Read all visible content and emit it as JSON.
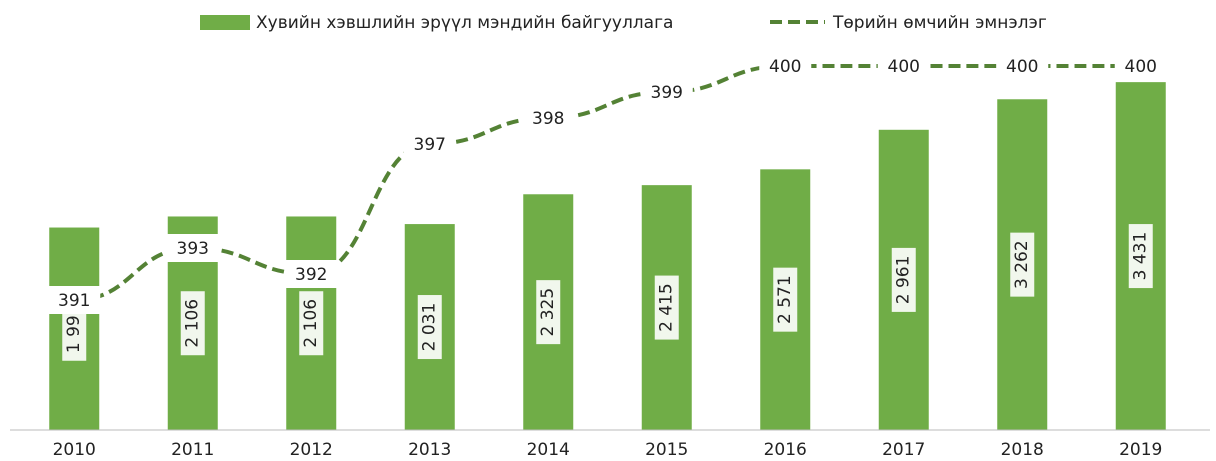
{
  "chart_data": {
    "type": "bar-line",
    "categories": [
      "2010",
      "2011",
      "2012",
      "2013",
      "2014",
      "2015",
      "2016",
      "2017",
      "2018",
      "2019"
    ],
    "series": [
      {
        "name": "Хувийн хэвшлийн эрүүл мэндийн байгууллага",
        "type": "bar",
        "color": "#70ad47",
        "values": [
          1997,
          2106,
          2106,
          2031,
          2325,
          2415,
          2571,
          2961,
          3262,
          3431
        ],
        "value_labels": [
          "1 997",
          "2 106",
          "2 106",
          "2 031",
          "2 325",
          "2 415",
          "2 571",
          "2 961",
          "3 262",
          "3 431"
        ]
      },
      {
        "name": "Төрийн өмчийн эмнэлэг",
        "type": "line",
        "color": "#548235",
        "axis": "y2",
        "values": [
          391,
          393,
          392,
          397,
          398,
          399,
          400,
          400,
          400,
          400
        ]
      }
    ],
    "ylim": [
      0,
      3600
    ],
    "y2lim": [
      386,
      401
    ],
    "legend": "top"
  }
}
